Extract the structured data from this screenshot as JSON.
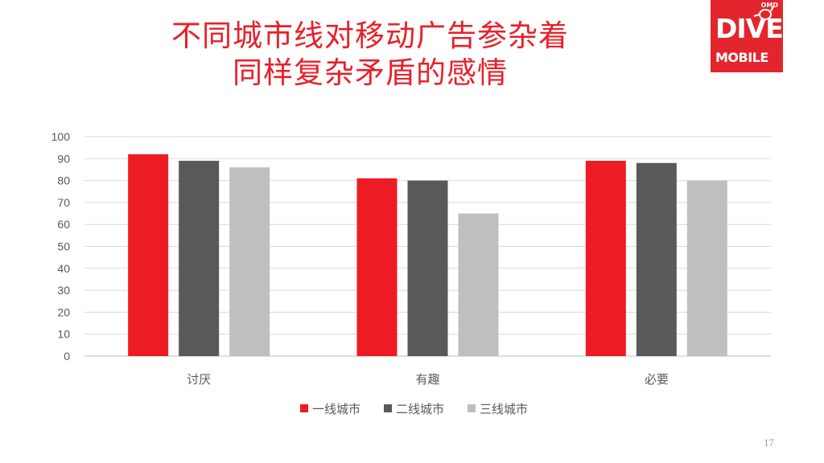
{
  "slide": {
    "title_line1": "不同城市线对移动广告参杂着",
    "title_line2": "同样复杂矛盾的感情",
    "page_number": "17"
  },
  "logo": {
    "top_text": "OMD",
    "line1": "DIVE",
    "line2": "MOBILE",
    "icon": "diver-mask-icon",
    "color": "#e3262d"
  },
  "chart_data": {
    "type": "bar",
    "categories": [
      "讨厌",
      "有趣",
      "必要"
    ],
    "series": [
      {
        "name": "一线城市",
        "color": "#ed1c24",
        "values": [
          92,
          81,
          89
        ]
      },
      {
        "name": "二线城市",
        "color": "#595959",
        "values": [
          89,
          80,
          88
        ]
      },
      {
        "name": "三线城市",
        "color": "#bfbfbf",
        "values": [
          86,
          65,
          80
        ]
      }
    ],
    "ylim": [
      0,
      100
    ],
    "yticks": [
      0,
      10,
      20,
      30,
      40,
      50,
      60,
      70,
      80,
      90,
      100
    ],
    "grid": true,
    "legend": "bottom"
  }
}
